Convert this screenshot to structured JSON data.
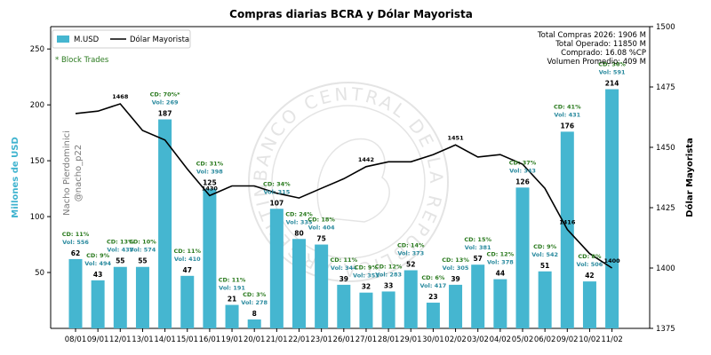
{
  "chart_data": {
    "type": "bar",
    "title": "Compras diarias BCRA y Dólar Mayorista",
    "ylabel": "Millones de USD",
    "ylabel_right": "Dólar Mayorista",
    "ylim": [
      0,
      270
    ],
    "ylim_right": [
      1375,
      1500
    ],
    "yticks": [
      50,
      100,
      150,
      200,
      250
    ],
    "yticks_right": [
      1375,
      1400,
      1425,
      1450,
      1475,
      1500
    ],
    "categories": [
      "08/01",
      "09/01",
      "12/01",
      "13/01",
      "14/01",
      "15/01",
      "16/01",
      "19/01",
      "20/01",
      "21/01",
      "22/01",
      "23/01",
      "26/01",
      "27/01",
      "28/01",
      "29/01",
      "30/01",
      "02/02",
      "03/02",
      "04/02",
      "05/02",
      "06/02",
      "09/02",
      "10/02",
      "11/02"
    ],
    "series": [
      {
        "name": "M.USD",
        "type": "bar",
        "color": "#45b6d0",
        "values": [
          62,
          43,
          55,
          55,
          187,
          47,
          125,
          21,
          8,
          107,
          80,
          75,
          39,
          32,
          33,
          52,
          23,
          39,
          57,
          44,
          126,
          51,
          176,
          42,
          214
        ]
      },
      {
        "name": "Dólar Mayorista",
        "type": "line",
        "color": "#000000",
        "values": [
          1464,
          1465,
          1468,
          1457,
          1453,
          1441,
          1430,
          1434,
          1434,
          1431,
          1429,
          1433,
          1437,
          1442,
          1444,
          1444,
          1447,
          1451,
          1446,
          1447,
          1443,
          1433,
          1416,
          1406,
          1400
        ]
      }
    ],
    "cd_labels": [
      "CD: 11%",
      "CD: 9%",
      "CD: 13%",
      "CD: 10%",
      "CD: 70%*",
      "CD: 11%",
      "CD: 31%",
      "CD: 11%",
      "CD: 3%",
      "CD: 34%",
      "CD: 24%",
      "CD: 18%",
      "CD: 11%",
      "CD: 9%",
      "CD: 12%",
      "CD: 14%",
      "CD: 6%",
      "CD: 13%",
      "CD: 15%",
      "CD: 12%",
      "CD: 37%",
      "CD: 9%",
      "CD: 41%",
      "CD: 8%",
      "CD: 36%"
    ],
    "vol_labels": [
      "Vol: 556",
      "Vol: 494",
      "Vol: 433",
      "Vol: 574",
      "Vol: 269",
      "Vol: 410",
      "Vol: 398",
      "Vol: 191",
      "Vol: 278",
      "Vol: 315",
      "Vol: 335",
      "Vol: 404",
      "Vol: 344",
      "Vol: 353",
      "Vol: 283",
      "Vol: 373",
      "Vol: 417",
      "Vol: 305",
      "Vol: 381",
      "Vol: 378",
      "Vol: 343",
      "Vol: 542",
      "Vol: 431",
      "Vol: 506",
      "Vol: 591"
    ],
    "line_labels": [
      {
        "index": 2,
        "text": "1468"
      },
      {
        "index": 6,
        "text": "1430"
      },
      {
        "index": 13,
        "text": "1442"
      },
      {
        "index": 17,
        "text": "1451"
      },
      {
        "index": 22,
        "text": "1416"
      },
      {
        "index": 24,
        "text": "1400"
      }
    ],
    "legend": [
      "M.USD",
      "Dólar Mayorista"
    ],
    "legend_position": "top-left",
    "annotation": "* Block Trades",
    "stats": [
      "Total Compras 2026: 1906 M",
      "Total Operado: 11850 M",
      "Comprado: 16.08 %CP",
      "Volumen Promedio: 409 M"
    ],
    "watermark": [
      "Nacho Pierdominici",
      "@nacho_p22"
    ],
    "seal_text": "BANCO CENTRAL DE LA REPUBLICA ARGENTINA"
  },
  "colors": {
    "bar": "#45b6d0",
    "line": "#000000",
    "cd": "#2a7a1e",
    "vol": "#2a8a9e"
  }
}
